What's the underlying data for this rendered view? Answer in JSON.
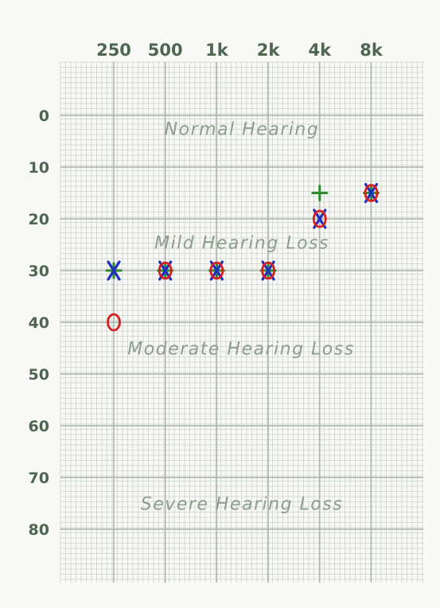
{
  "chart_data": {
    "type": "scatter",
    "title": "",
    "xlabel": "",
    "ylabel": "",
    "x_scale": "log2",
    "x_categories": [
      "250",
      "500",
      "1k",
      "2k",
      "4k",
      "8k"
    ],
    "x_values_hz": [
      250,
      500,
      1000,
      2000,
      4000,
      8000
    ],
    "y_ticks": [
      0,
      10,
      20,
      30,
      40,
      50,
      60,
      70,
      80
    ],
    "ylim": [
      -10,
      90
    ],
    "y_inverted": true,
    "grid": true,
    "bands": [
      {
        "label": "Normal Hearing",
        "level": 2.5
      },
      {
        "label": "Mild Hearing Loss",
        "level": 24.5
      },
      {
        "label": "Moderate Hearing Loss",
        "level": 45
      },
      {
        "label": "Severe Hearing Loss",
        "level": 75
      }
    ],
    "series": [
      {
        "symbol": "X",
        "color": "#1f2fbf",
        "points": [
          [
            250,
            30
          ],
          [
            500,
            30
          ],
          [
            1000,
            30
          ],
          [
            2000,
            30
          ],
          [
            4000,
            20
          ],
          [
            8000,
            15
          ]
        ]
      },
      {
        "symbol": "O",
        "color": "#d81f1f",
        "points": [
          [
            250,
            40
          ],
          [
            500,
            30
          ],
          [
            1000,
            30
          ],
          [
            2000,
            30
          ],
          [
            4000,
            20
          ],
          [
            8000,
            15
          ]
        ]
      },
      {
        "symbol": "+",
        "color": "#2e8b2e",
        "points": [
          [
            250,
            30
          ],
          [
            500,
            30
          ],
          [
            1000,
            30
          ],
          [
            2000,
            30
          ],
          [
            4000,
            15
          ],
          [
            8000,
            15
          ]
        ]
      }
    ]
  },
  "colors": {
    "grid_minor": "#cdd3cb",
    "grid_major": "#a9b2a8",
    "label": "#4e6650",
    "band_text": "#8d9e8d"
  }
}
